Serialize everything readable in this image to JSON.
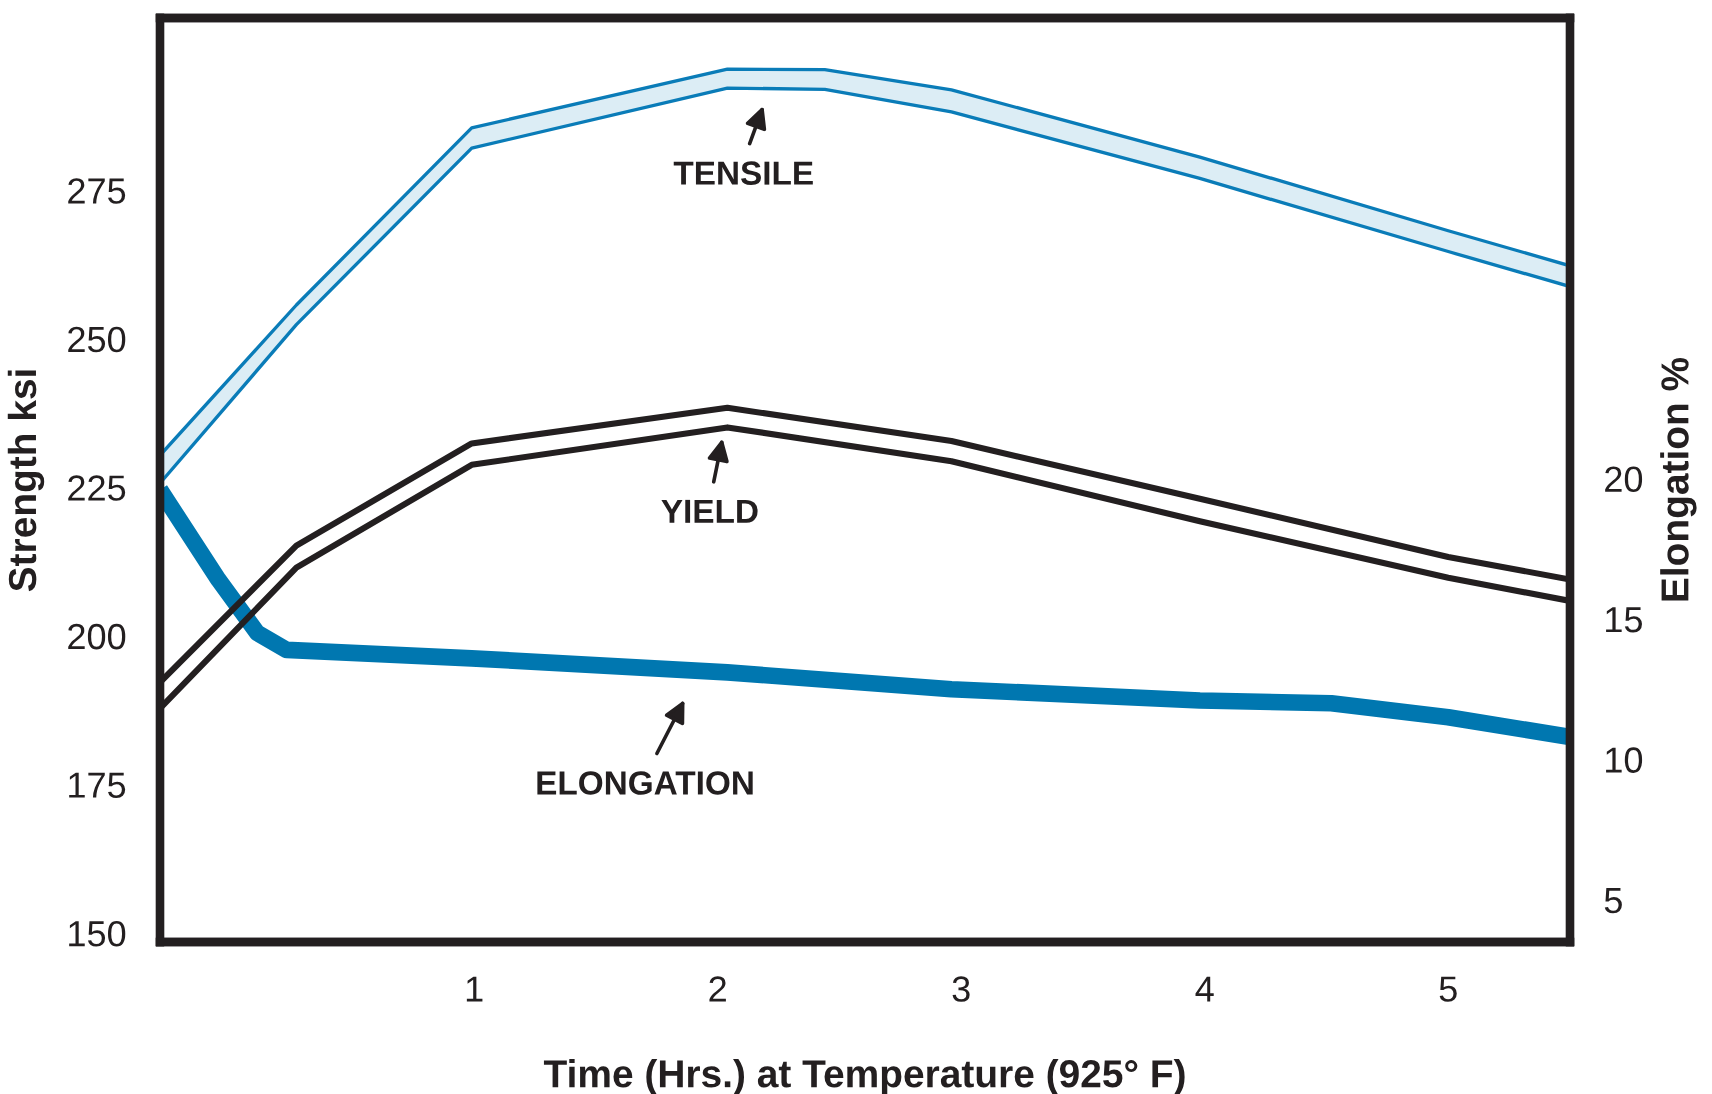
{
  "chart_data": {
    "type": "line",
    "xlabel": "Time (Hrs.) at Temperature (925° F)",
    "ylabel": "Strength ksi",
    "y2label": "Elongation %",
    "xlim": [
      -0.29,
      5.5
    ],
    "xticks": [
      1,
      2,
      3,
      4,
      5
    ],
    "ylim": [
      148.5,
      304
    ],
    "yticks": [
      150,
      175,
      200,
      225,
      250,
      275
    ],
    "y2lim": [
      3.5,
      36.4
    ],
    "y2ticks": [
      5,
      10,
      15,
      20
    ],
    "grid": false,
    "marker": "none",
    "line_style": "solid",
    "series": [
      {
        "color": "#0a7cb8",
        "x": [
          -0.29,
          0.27,
          0.99,
          2.04,
          2.44,
          2.96,
          3.98,
          5.0,
          5.5
        ],
        "values": [
          230.4,
          255.7,
          285.5,
          295.4,
          295.3,
          291.9,
          280.6,
          268.2,
          262.3
        ]
      },
      {
        "color": "#0a7cb8",
        "x": [
          -0.29,
          0.27,
          0.99,
          2.04,
          2.44,
          2.96,
          3.98,
          5.0,
          5.5
        ],
        "values": [
          225.7,
          252.4,
          282.1,
          292.2,
          292.0,
          288.2,
          277.0,
          264.7,
          258.8
        ]
      },
      {
        "color": "#231f20",
        "x": [
          -0.29,
          0.27,
          0.99,
          2.04,
          2.96,
          3.98,
          5.0,
          5.5
        ],
        "values": [
          192.2,
          215.2,
          232.4,
          238.4,
          232.8,
          223.1,
          213.3,
          209.5
        ]
      },
      {
        "color": "#231f20",
        "x": [
          -0.29,
          0.27,
          0.99,
          2.04,
          2.96,
          3.98,
          5.0,
          5.5
        ],
        "values": [
          187.8,
          211.5,
          228.8,
          235.1,
          229.4,
          219.3,
          209.8,
          205.9
        ]
      },
      {
        "axis": "y2",
        "color": "#0077b0",
        "x": [
          -0.29,
          -0.05,
          0.11,
          0.23,
          0.99,
          2.04,
          2.96,
          3.98,
          4.52,
          5.0,
          5.5
        ],
        "values": [
          19.6,
          16.4,
          14.5,
          13.9,
          13.6,
          13.1,
          12.5,
          12.1,
          12.0,
          11.5,
          10.8
        ]
      }
    ],
    "annotations": [
      "TENSILE",
      "YIELD",
      "ELONGATION"
    ]
  }
}
